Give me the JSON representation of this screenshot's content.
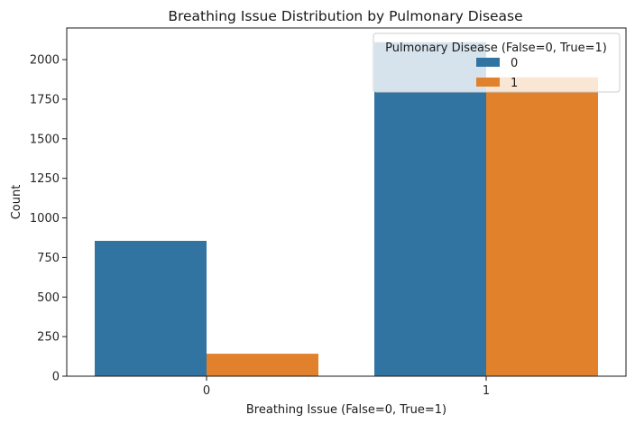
{
  "chart_data": {
    "type": "bar",
    "title": "Breathing Issue Distribution by Pulmonary Disease",
    "xlabel": "Breathing Issue (False=0, True=1)",
    "ylabel": "Count",
    "categories": [
      "0",
      "1"
    ],
    "series": [
      {
        "name": "0",
        "color": "#3274a1",
        "values": [
          855,
          2110
        ]
      },
      {
        "name": "1",
        "color": "#e1812c",
        "values": [
          142,
          1888
        ]
      }
    ],
    "ylim": [
      0,
      2200
    ],
    "yticks": [
      0,
      250,
      500,
      750,
      1000,
      1250,
      1500,
      1750,
      2000
    ],
    "grid": false,
    "legend": {
      "title": "Pulmonary Disease (False=0, True=1)",
      "position": "top-right"
    }
  }
}
